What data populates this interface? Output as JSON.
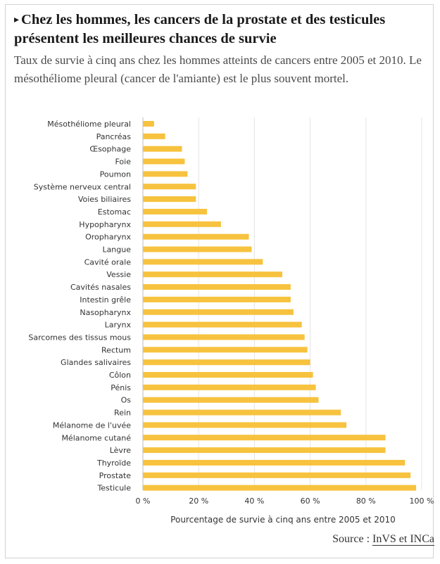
{
  "header": {
    "title_marker": "▸",
    "title": "Chez les hommes, les cancers de la prostate et des testicules présentent les meilleures chances de survie",
    "subtitle": "Taux de survie à cinq ans chez les hommes atteints de cancers entre 2005 et 2010. Le mésothéliome pleural (cancer de l'amiante) est le plus souvent mortel."
  },
  "chart_data": {
    "type": "bar",
    "orientation": "horizontal",
    "xlabel": "Pourcentage de survie à cinq ans entre 2005 et 2010",
    "xlim": [
      0,
      100
    ],
    "xticks": [
      0,
      20,
      40,
      60,
      80,
      100
    ],
    "xtick_labels": [
      "0 %",
      "20 %",
      "40 %",
      "60 %",
      "80 %",
      "100 %"
    ],
    "grid": true,
    "bar_color": "#f7c23e",
    "categories": [
      "Mésothéliome pleural",
      "Pancréas",
      "Œsophage",
      "Foie",
      "Poumon",
      "Système nerveux central",
      "Voies biliaires",
      "Estomac",
      "Hypopharynx",
      "Oropharynx",
      "Langue",
      "Cavité orale",
      "Vessie",
      "Cavités nasales",
      "Intestin grêle",
      "Nasopharynx",
      "Larynx",
      "Sarcomes des tissus mous",
      "Rectum",
      "Glandes salivaires",
      "Côlon",
      "Pénis",
      "Os",
      "Rein",
      "Mélanome de l'uvée",
      "Mélanome cutané",
      "Lèvre",
      "Thyroïde",
      "Prostate",
      "Testicule"
    ],
    "values": [
      4,
      8,
      14,
      15,
      16,
      19,
      19,
      23,
      28,
      38,
      39,
      43,
      50,
      53,
      53,
      54,
      57,
      58,
      59,
      60,
      61,
      62,
      63,
      71,
      73,
      87,
      87,
      94,
      96,
      98
    ]
  },
  "footer": {
    "source_prefix": "Source : ",
    "source_link": "InVS et INCa"
  }
}
